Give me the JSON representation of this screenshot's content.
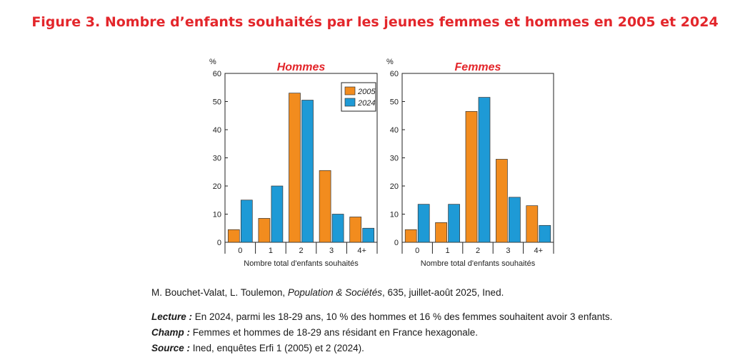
{
  "title": "Figure 3. Nombre d’enfants souhaités par les jeunes femmes et hommes en 2005 et 2024",
  "colors": {
    "title": "#e3262b",
    "series_2005": "#f28c1e",
    "series_2024": "#1e9ad6"
  },
  "chart_data": [
    {
      "type": "bar",
      "title": "Hommes",
      "ylabel": "%",
      "xlabel": "Nombre total d'enfants souhaités",
      "categories": [
        "0",
        "1",
        "2",
        "3",
        "4+"
      ],
      "ylim": [
        0,
        60
      ],
      "yticks": [
        0,
        10,
        20,
        30,
        40,
        50,
        60
      ],
      "legend": "top-right",
      "series": [
        {
          "name": "2005",
          "values": [
            4.5,
            8.5,
            53,
            25.5,
            9
          ]
        },
        {
          "name": "2024",
          "values": [
            15,
            20,
            50.5,
            10,
            5
          ]
        }
      ]
    },
    {
      "type": "bar",
      "title": "Femmes",
      "ylabel": "%",
      "xlabel": "Nombre total d'enfants souhaités",
      "categories": [
        "0",
        "1",
        "2",
        "3",
        "4+"
      ],
      "ylim": [
        0,
        60
      ],
      "yticks": [
        0,
        10,
        20,
        30,
        40,
        50,
        60
      ],
      "series": [
        {
          "name": "2005",
          "values": [
            4.5,
            7,
            46.5,
            29.5,
            13
          ]
        },
        {
          "name": "2024",
          "values": [
            13.5,
            13.5,
            51.5,
            16,
            6
          ]
        }
      ]
    }
  ],
  "citation": {
    "authors": "M. Bouchet-Valat, L. Toulemon, ",
    "journal": "Population & Sociétés",
    "details": ", 635, juillet-août 2025, Ined."
  },
  "notes": [
    {
      "key": "Lecture :",
      "text": " En 2024, parmi les 18-29 ans, 10 % des hommes et 16 % des femmes souhaitent avoir 3 enfants."
    },
    {
      "key": "Champ :",
      "text": " Femmes et hommes de 18-29 ans résidant en France hexagonale."
    },
    {
      "key": "Source :",
      "text": " Ined, enquêtes Erfi 1 (2005) et 2 (2024)."
    }
  ]
}
